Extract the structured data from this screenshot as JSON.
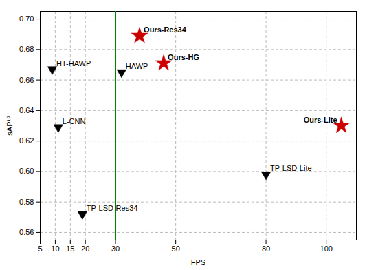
{
  "chart_data": {
    "type": "scatter",
    "title": "",
    "xlabel": "FPS",
    "ylabel": "sAP¹⁰",
    "xlim": [
      5,
      110
    ],
    "ylim": [
      0.555,
      0.705
    ],
    "xticks": [
      5,
      10,
      15,
      20,
      30,
      50,
      80,
      100
    ],
    "yticks": [
      0.56,
      0.58,
      {
        "value": 0.6,
        "label": "0.60"
      },
      0.62,
      0.64,
      0.66,
      0.68,
      {
        "value": 0.7,
        "label": "0.70"
      }
    ],
    "grid": true,
    "series": [
      {
        "color": "#000000",
        "marker": "triangle-down",
        "x": [
          9,
          11,
          19,
          32,
          80
        ],
        "values": [
          0.667,
          0.629,
          0.572,
          0.665,
          0.598
        ],
        "labels": [
          "HT-HAWP",
          "L-CNN",
          "TP-LSD-Res34",
          "HAWP",
          "TP-LSD-Lite"
        ]
      },
      {
        "color": "#cc0000",
        "marker": "star",
        "x": [
          38,
          46,
          105
        ],
        "values": [
          0.689,
          0.671,
          0.63
        ],
        "labels": [
          "Ours-Res34",
          "Ours-HG",
          "Ours-Lite"
        ]
      }
    ],
    "annotations": [
      {
        "type": "vline",
        "x": 30,
        "color": "#008000"
      }
    ]
  }
}
